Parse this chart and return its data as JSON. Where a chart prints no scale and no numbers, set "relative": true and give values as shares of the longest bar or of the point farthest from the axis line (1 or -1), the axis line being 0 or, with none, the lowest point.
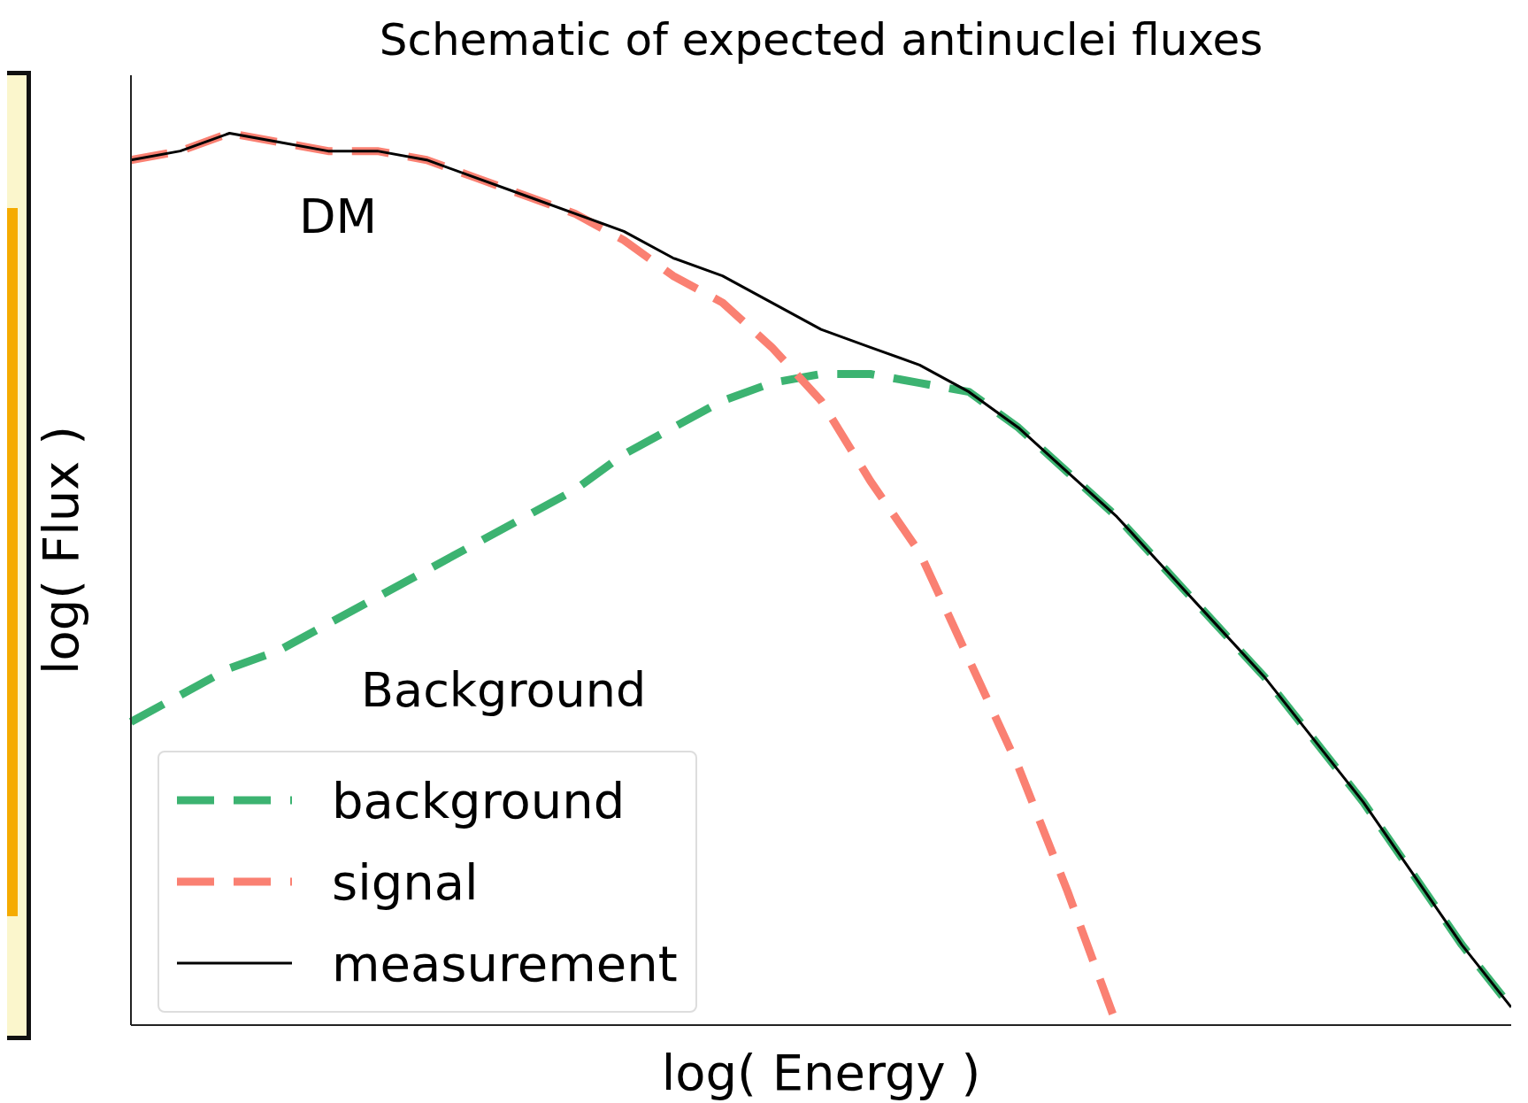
{
  "chart_data": {
    "type": "line",
    "title": "Schematic of expected antinuclei fluxes",
    "xlabel": "log( Energy )",
    "ylabel": "log( Flux )",
    "relative": true,
    "legend": "bottom left",
    "annotations": [
      "DM",
      "Background"
    ],
    "categories": [
      null,
      null,
      null,
      null,
      null,
      null,
      null,
      null,
      null,
      null,
      null,
      null,
      null,
      null,
      null,
      null,
      null,
      null,
      null,
      null,
      null,
      null,
      null,
      null,
      null,
      null,
      null,
      null,
      null
    ],
    "series": [
      {
        "name": "background",
        "color": "#3cb371",
        "line_style": "dashed",
        "values": [
          0.34,
          0.37,
          0.4,
          0.42,
          0.45,
          0.48,
          0.51,
          0.54,
          0.57,
          0.6,
          0.64,
          0.67,
          0.7,
          0.72,
          0.73,
          0.73,
          0.72,
          0.71,
          0.67,
          0.62,
          0.57,
          0.51,
          0.45,
          0.39,
          0.32,
          0.25,
          0.17,
          0.09,
          0.02
        ]
      },
      {
        "name": "signal",
        "color": "#fa8072",
        "line_style": "dashed",
        "values": [
          0.97,
          0.98,
          1.0,
          0.99,
          0.98,
          0.98,
          0.97,
          0.95,
          0.93,
          0.91,
          0.88,
          0.84,
          0.81,
          0.76,
          0.7,
          0.61,
          0.53,
          0.41,
          0.29,
          0.15,
          0.0,
          null,
          null,
          null,
          null,
          null,
          null,
          null,
          null
        ]
      },
      {
        "name": "measurement",
        "color": "#000000",
        "line_style": "solid",
        "values": [
          0.97,
          0.98,
          1.0,
          0.99,
          0.98,
          0.98,
          0.97,
          0.95,
          0.93,
          0.91,
          0.89,
          0.86,
          0.84,
          0.81,
          0.78,
          0.76,
          0.74,
          0.71,
          0.67,
          0.62,
          0.57,
          0.51,
          0.45,
          0.39,
          0.32,
          0.25,
          0.17,
          0.09,
          0.02
        ]
      }
    ]
  }
}
